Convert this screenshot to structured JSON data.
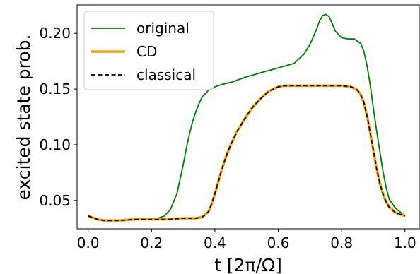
{
  "chart_data": {
    "type": "line",
    "xlabel": "t [2π/Ω]",
    "ylabel": "excited state prob.",
    "xlim": [
      -0.035,
      1.045
    ],
    "ylim": [
      0.0245,
      0.2255
    ],
    "xticks": [
      0.0,
      0.2,
      0.4,
      0.6,
      0.8,
      1.0
    ],
    "xtick_labels": [
      "0.0",
      "0.2",
      "0.4",
      "0.6",
      "0.8",
      "1.0"
    ],
    "yticks": [
      0.05,
      0.1,
      0.15,
      0.2
    ],
    "ytick_labels": [
      "0.05",
      "0.10",
      "0.15",
      "0.20"
    ],
    "legend_position": "top-left",
    "grid": false,
    "series": [
      {
        "name": "original",
        "color": "#008000",
        "style": "solid",
        "x": [
          0.0,
          0.02,
          0.05,
          0.1,
          0.15,
          0.2,
          0.22,
          0.24,
          0.26,
          0.28,
          0.3,
          0.31,
          0.32,
          0.33,
          0.34,
          0.35,
          0.36,
          0.38,
          0.4,
          0.42,
          0.45,
          0.5,
          0.55,
          0.6,
          0.65,
          0.68,
          0.7,
          0.72,
          0.73,
          0.74,
          0.75,
          0.76,
          0.77,
          0.78,
          0.8,
          0.82,
          0.84,
          0.86,
          0.87,
          0.88,
          0.89,
          0.9,
          0.91,
          0.92,
          0.93,
          0.94,
          0.95,
          0.97,
          1.0
        ],
        "y": [
          0.037,
          0.034,
          0.032,
          0.032,
          0.033,
          0.033,
          0.034,
          0.036,
          0.042,
          0.056,
          0.082,
          0.097,
          0.11,
          0.121,
          0.13,
          0.137,
          0.143,
          0.149,
          0.152,
          0.154,
          0.156,
          0.161,
          0.165,
          0.169,
          0.173,
          0.181,
          0.19,
          0.203,
          0.211,
          0.216,
          0.217,
          0.215,
          0.209,
          0.202,
          0.196,
          0.195,
          0.195,
          0.191,
          0.184,
          0.171,
          0.154,
          0.133,
          0.113,
          0.095,
          0.077,
          0.062,
          0.051,
          0.043,
          0.036
        ]
      },
      {
        "name": "CD",
        "color": "#FFA500",
        "style": "solid-thick",
        "x": [
          0.0,
          0.03,
          0.05,
          0.1,
          0.15,
          0.2,
          0.25,
          0.3,
          0.34,
          0.36,
          0.38,
          0.39,
          0.4,
          0.41,
          0.42,
          0.43,
          0.44,
          0.45,
          0.47,
          0.5,
          0.52,
          0.55,
          0.57,
          0.6,
          0.62,
          0.65,
          0.7,
          0.75,
          0.8,
          0.83,
          0.85,
          0.86,
          0.87,
          0.88,
          0.89,
          0.9,
          0.91,
          0.92,
          0.93,
          0.94,
          0.95,
          0.97,
          1.0
        ],
        "y": [
          0.036,
          0.033,
          0.032,
          0.032,
          0.033,
          0.033,
          0.033,
          0.034,
          0.034,
          0.035,
          0.04,
          0.047,
          0.056,
          0.066,
          0.076,
          0.085,
          0.093,
          0.1,
          0.112,
          0.126,
          0.134,
          0.143,
          0.148,
          0.152,
          0.153,
          0.153,
          0.153,
          0.153,
          0.153,
          0.152,
          0.149,
          0.145,
          0.138,
          0.126,
          0.111,
          0.095,
          0.079,
          0.066,
          0.056,
          0.049,
          0.044,
          0.039,
          0.036
        ]
      },
      {
        "name": "classical",
        "color": "#000000",
        "style": "dashed",
        "x": [
          0.0,
          0.03,
          0.05,
          0.1,
          0.15,
          0.2,
          0.25,
          0.3,
          0.34,
          0.36,
          0.38,
          0.39,
          0.4,
          0.41,
          0.42,
          0.43,
          0.44,
          0.45,
          0.47,
          0.5,
          0.52,
          0.55,
          0.57,
          0.6,
          0.62,
          0.65,
          0.7,
          0.75,
          0.8,
          0.83,
          0.85,
          0.86,
          0.87,
          0.88,
          0.89,
          0.9,
          0.91,
          0.92,
          0.93,
          0.94,
          0.95,
          0.97,
          1.0
        ],
        "y": [
          0.036,
          0.033,
          0.032,
          0.032,
          0.033,
          0.033,
          0.033,
          0.034,
          0.034,
          0.035,
          0.04,
          0.047,
          0.056,
          0.066,
          0.076,
          0.085,
          0.093,
          0.1,
          0.112,
          0.126,
          0.134,
          0.143,
          0.148,
          0.152,
          0.153,
          0.153,
          0.153,
          0.153,
          0.153,
          0.152,
          0.149,
          0.145,
          0.138,
          0.126,
          0.111,
          0.095,
          0.079,
          0.066,
          0.056,
          0.049,
          0.044,
          0.039,
          0.036
        ]
      }
    ]
  }
}
